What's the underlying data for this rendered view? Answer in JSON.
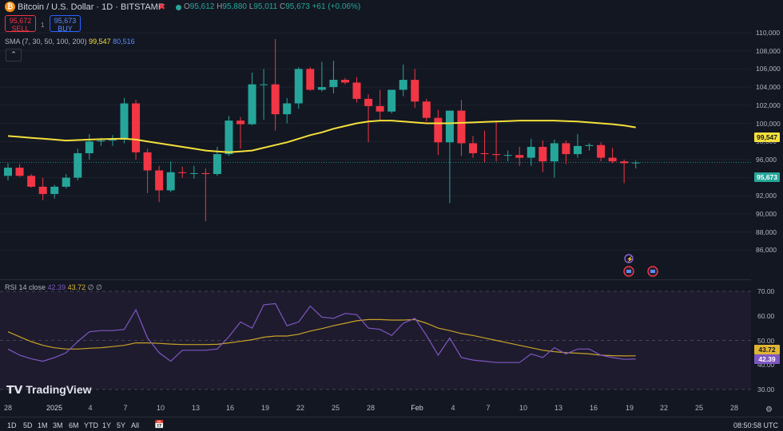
{
  "header": {
    "symbol_icon": "bitcoin-icon",
    "title": "Bitcoin / U.S. Dollar · 1D · BITSTAMP",
    "ohlc": {
      "o_label": "O",
      "o": "95,612",
      "h_label": "H",
      "h": "95,880",
      "l_label": "L",
      "l": "95,011",
      "c_label": "C",
      "c": "95,673",
      "change": "+61 (+0.06%)"
    },
    "sell_price": "95,672",
    "sell_label": "SELL",
    "buy_price": "95,673",
    "buy_label": "BUY",
    "spread": "1"
  },
  "sma_legend": {
    "label": "SMA (7, 30, 50, 100, 200)",
    "value1": "99,547",
    "value2": "80,516"
  },
  "rsi_legend": {
    "label": "RSI 14 close",
    "value1": "42.39",
    "value2": "43.72",
    "extra": "∅ ∅"
  },
  "price_axis": {
    "labels": [
      "110,000",
      "108,000",
      "106,000",
      "104,000",
      "102,000",
      "100,000",
      "98,000",
      "96,000",
      "94,000",
      "92,000",
      "90,000",
      "88,000",
      "86,000"
    ],
    "sma_tag": "99,547",
    "last_tag": "95,673"
  },
  "rsi_axis": {
    "labels": [
      "70.00",
      "60.00",
      "50.00",
      "40.00",
      "30.00"
    ],
    "ma_tag": "43.72",
    "rsi_tag": "42.39"
  },
  "time_axis": [
    "28",
    "2025",
    "4",
    "7",
    "10",
    "13",
    "16",
    "19",
    "22",
    "25",
    "28",
    "Feb",
    "4",
    "7",
    "10",
    "13",
    "16",
    "19",
    "22",
    "25",
    "28"
  ],
  "timeframes": [
    "1D",
    "5D",
    "1M",
    "3M",
    "6M",
    "YTD",
    "1Y",
    "5Y",
    "All"
  ],
  "clock": "08:50:58 UTC",
  "logo_text": "TradingView",
  "colors": {
    "up": "#26a69a",
    "down": "#f23645",
    "sma": "#f5e03b",
    "rsi": "#7e57c2",
    "rsi_ma": "#c9a227",
    "bg": "#131722"
  },
  "chart_data": [
    {
      "type": "candlestick",
      "title": "Bitcoin / U.S. Dollar · 1D · BITSTAMP",
      "x": [
        "Dec 27",
        "Dec 28",
        "Dec 29",
        "Dec 30",
        "Dec 31",
        "Jan 1",
        "Jan 2",
        "Jan 3",
        "Jan 4",
        "Jan 5",
        "Jan 6",
        "Jan 7",
        "Jan 8",
        "Jan 9",
        "Jan 10",
        "Jan 11",
        "Jan 12",
        "Jan 13",
        "Jan 14",
        "Jan 15",
        "Jan 16",
        "Jan 17",
        "Jan 18",
        "Jan 19",
        "Jan 20",
        "Jan 21",
        "Jan 22",
        "Jan 23",
        "Jan 24",
        "Jan 25",
        "Jan 26",
        "Jan 27",
        "Jan 28",
        "Jan 29",
        "Jan 30",
        "Jan 31",
        "Feb 1",
        "Feb 2",
        "Feb 3",
        "Feb 4",
        "Feb 5",
        "Feb 6",
        "Feb 7",
        "Feb 8",
        "Feb 9",
        "Feb 10",
        "Feb 11",
        "Feb 12",
        "Feb 13",
        "Feb 14",
        "Feb 15",
        "Feb 16",
        "Feb 17",
        "Feb 18",
        "Feb 19"
      ],
      "series": [
        {
          "name": "BTCUSD",
          "ohlc": [
            [
              94200,
              95600,
              93700,
              95100
            ],
            [
              95100,
              95500,
              94100,
              94200
            ],
            [
              94200,
              94400,
              92900,
              93000
            ],
            [
              93000,
              94000,
              91500,
              92200
            ],
            [
              92200,
              93200,
              91700,
              93000
            ],
            [
              93000,
              94400,
              92800,
              94000
            ],
            [
              94000,
              97200,
              93700,
              96700
            ],
            [
              96700,
              98800,
              96000,
              98000
            ],
            [
              98000,
              98400,
              97500,
              98100
            ],
            [
              98100,
              98700,
              97500,
              98200
            ],
            [
              98200,
              102800,
              97800,
              102200
            ],
            [
              102200,
              102600,
              96000,
              96800
            ],
            [
              96800,
              97200,
              92300,
              94800
            ],
            [
              94800,
              95300,
              91300,
              92600
            ],
            [
              92600,
              95800,
              92400,
              94600
            ],
            [
              94600,
              95200,
              94000,
              94500
            ],
            [
              94500,
              95300,
              93900,
              94500
            ],
            [
              94500,
              95000,
              89200,
              94400
            ],
            [
              94400,
              97400,
              94200,
              96600
            ],
            [
              96600,
              100800,
              96400,
              100300
            ],
            [
              100300,
              100700,
              97200,
              99900
            ],
            [
              99900,
              105600,
              99800,
              104300
            ],
            [
              104300,
              106000,
              100400,
              104300
            ],
            [
              104300,
              109300,
              99200,
              101000
            ],
            [
              101000,
              102800,
              100000,
              102200
            ],
            [
              102200,
              106200,
              101600,
              106000
            ],
            [
              106000,
              106200,
              103600,
              103700
            ],
            [
              103700,
              106800,
              103500,
              104000
            ],
            [
              104000,
              106900,
              103300,
              104800
            ],
            [
              104800,
              105000,
              104300,
              104500
            ],
            [
              104500,
              105100,
              102300,
              102700
            ],
            [
              102700,
              103200,
              97900,
              101900
            ],
            [
              101900,
              103700,
              100300,
              101300
            ],
            [
              101300,
              103500,
              101100,
              103700
            ],
            [
              103700,
              106500,
              103000,
              104800
            ],
            [
              104800,
              106000,
              101700,
              102400
            ],
            [
              102400,
              102700,
              100200,
              100600
            ],
            [
              100600,
              101500,
              96500,
              97900
            ],
            [
              97900,
              101200,
              91200,
              101400
            ],
            [
              101400,
              102600,
              96400,
              97800
            ],
            [
              97800,
              98600,
              96200,
              96700
            ],
            [
              96700,
              99200,
              95700,
              96600
            ],
            [
              96600,
              100200,
              95800,
              96500
            ],
            [
              96500,
              97000,
              95800,
              96500
            ],
            [
              96500,
              97400,
              95300,
              96200
            ],
            [
              96200,
              98300,
              95300,
              97400
            ],
            [
              97400,
              98100,
              94600,
              95800
            ],
            [
              95800,
              98200,
              94000,
              97800
            ],
            [
              97800,
              98100,
              95500,
              96600
            ],
            [
              96600,
              98800,
              96200,
              97500
            ],
            [
              97500,
              97800,
              97000,
              97600
            ],
            [
              97600,
              97900,
              95800,
              96200
            ],
            [
              96200,
              97300,
              95600,
              95800
            ],
            [
              95800,
              96000,
              93400,
              95600
            ],
            [
              95612,
              95880,
              95011,
              95673
            ]
          ]
        },
        {
          "name": "SMA",
          "values": [
            98600,
            98500,
            98400,
            98300,
            98200,
            98100,
            98150,
            98200,
            98250,
            98280,
            98300,
            98200,
            98000,
            97800,
            97600,
            97400,
            97200,
            97000,
            96900,
            96800,
            96900,
            97000,
            97300,
            97600,
            97900,
            98300,
            98700,
            99000,
            99400,
            99700,
            100000,
            100200,
            100300,
            100300,
            100200,
            100100,
            100000,
            100000,
            100000,
            100050,
            100100,
            100150,
            100200,
            100250,
            100300,
            100300,
            100300,
            100300,
            100250,
            100200,
            100100,
            100000,
            99900,
            99750,
            99547
          ]
        }
      ],
      "ylim": [
        85000,
        111500
      ]
    },
    {
      "type": "line",
      "title": "RSI 14 close",
      "series": [
        {
          "name": "RSI",
          "values": [
            46.5,
            44.0,
            42.5,
            41.5,
            43.0,
            45.0,
            49.5,
            53.5,
            54.0,
            54.0,
            54.5,
            62.5,
            51.0,
            45.0,
            41.5,
            46.0,
            46.0,
            46.0,
            46.5,
            51.5,
            57.5,
            55.0,
            64.5,
            65.0,
            56.0,
            57.5,
            64.0,
            59.5,
            59.0,
            61.0,
            60.5,
            55.0,
            54.5,
            52.0,
            57.0,
            59.0,
            52.0,
            44.0,
            51.0,
            43.0,
            42.0,
            41.5,
            41.0,
            41.0,
            41.0,
            44.5,
            43.0,
            47.0,
            44.5,
            46.5,
            46.5,
            44.0,
            43.0,
            42.3,
            42.39
          ]
        },
        {
          "name": "RSI-based MA",
          "values": [
            53.5,
            51.5,
            49.5,
            48.0,
            47.0,
            46.5,
            46.5,
            46.8,
            47.0,
            47.5,
            48.0,
            49.0,
            49.0,
            48.8,
            48.5,
            48.3,
            48.3,
            48.3,
            48.4,
            49.0,
            49.6,
            50.3,
            51.3,
            51.8,
            51.8,
            52.5,
            53.8,
            54.8,
            56.0,
            57.0,
            58.0,
            58.5,
            58.5,
            58.3,
            58.3,
            58.5,
            57.0,
            55.0,
            54.0,
            52.8,
            52.0,
            51.0,
            50.0,
            49.0,
            48.0,
            47.0,
            46.0,
            45.4,
            45.0,
            44.8,
            44.5,
            44.0,
            43.8,
            43.7,
            43.72
          ]
        }
      ],
      "levels": [
        70,
        60,
        50,
        40,
        30
      ],
      "ylim": [
        27,
        73
      ]
    }
  ]
}
